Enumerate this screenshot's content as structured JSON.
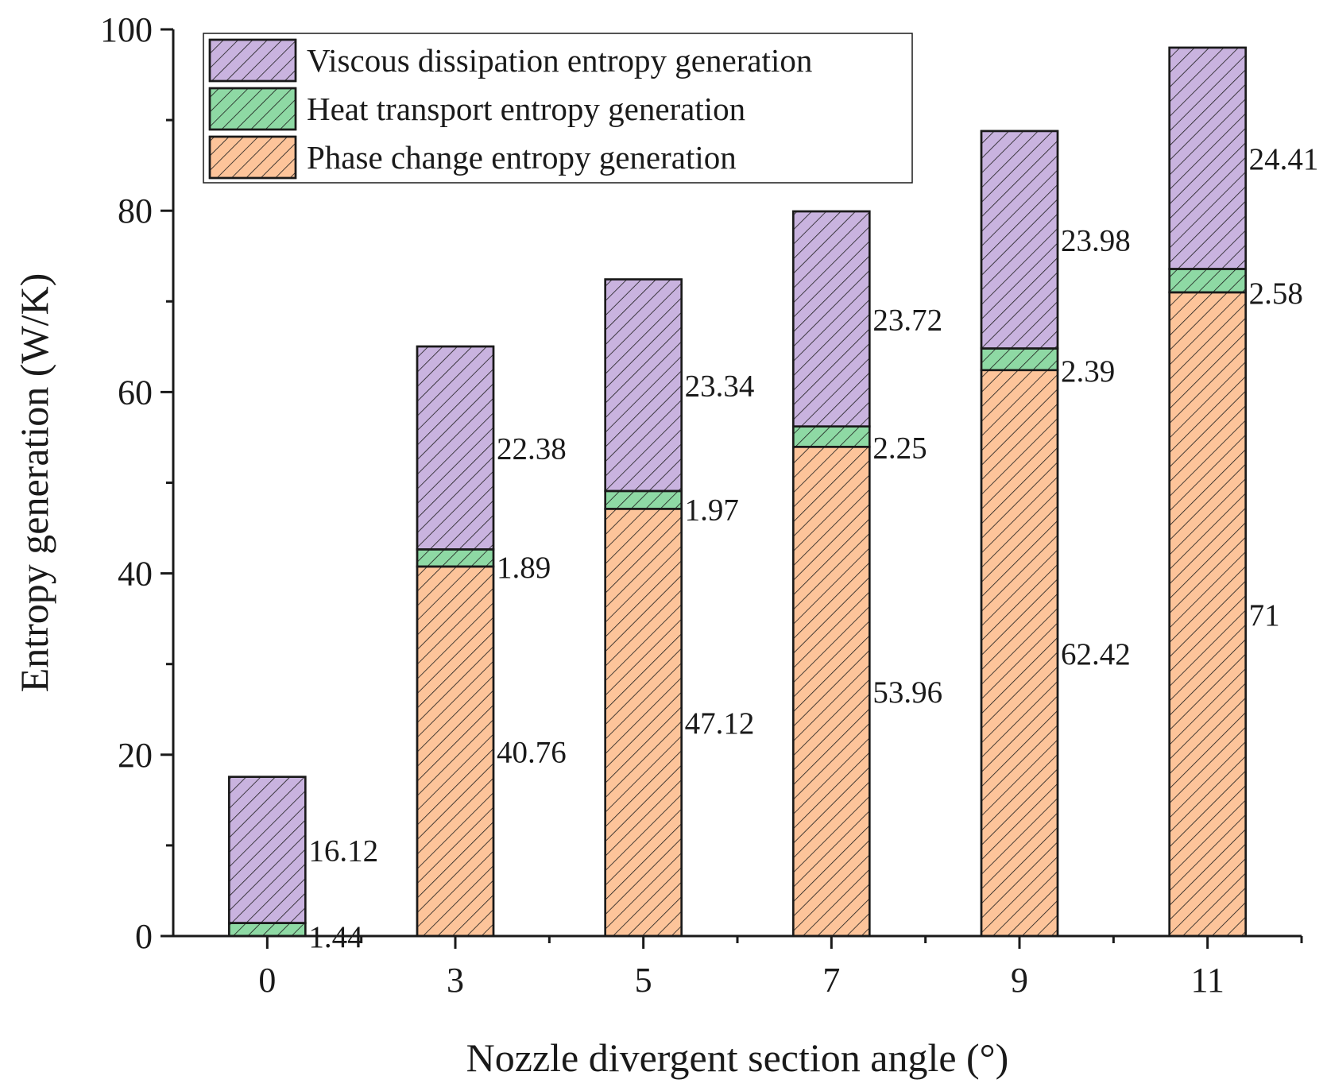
{
  "chart_data": {
    "type": "bar",
    "stacked": true,
    "categories": [
      "0",
      "3",
      "5",
      "7",
      "9",
      "11"
    ],
    "series": [
      {
        "name": "Phase change entropy generation",
        "values": [
          0,
          40.76,
          47.12,
          53.96,
          62.42,
          71
        ],
        "color": "#FDC49A",
        "labels": [
          "",
          "40.76",
          "47.12",
          "53.96",
          "62.42",
          "71"
        ]
      },
      {
        "name": "Heat transport entropy generation",
        "values": [
          1.44,
          1.89,
          1.97,
          2.25,
          2.39,
          2.58
        ],
        "color": "#8ED9A4",
        "labels": [
          "1.44",
          "1.89",
          "1.97",
          "2.25",
          "2.39",
          "2.58"
        ]
      },
      {
        "name": "Viscous dissipation entropy generation",
        "values": [
          16.12,
          22.38,
          23.34,
          23.72,
          23.98,
          24.41
        ],
        "color": "#C9B3DF",
        "labels": [
          "16.12",
          "22.38",
          "23.34",
          "23.72",
          "23.98",
          "24.41"
        ]
      }
    ],
    "legend_order": [
      2,
      1,
      0
    ],
    "xlabel": "Nozzle divergent section angle (°)",
    "ylabel": "Entropy generation (W/K)",
    "ylim": [
      0,
      100
    ],
    "yticks": [
      0,
      20,
      40,
      60,
      80,
      100
    ],
    "ytick_labels": [
      "0",
      "20",
      "40",
      "60",
      "80",
      "100"
    ],
    "hatch": "diagonal",
    "legend_position": "top-left"
  }
}
